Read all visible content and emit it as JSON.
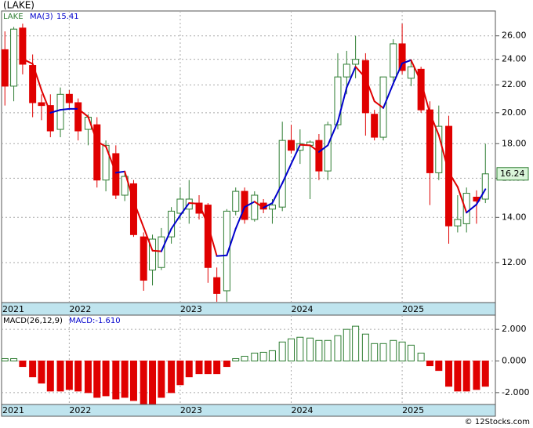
{
  "chart_data": [
    {
      "type": "candlestick",
      "title": "(LAKE)",
      "symbol": "LAKE",
      "log_scale": true,
      "grid": true,
      "up_color": "#2e7d32",
      "down_color": "#e00000",
      "x": [
        2021.42,
        2021.5,
        2021.58,
        2021.67,
        2021.75,
        2021.83,
        2021.92,
        2022.0,
        2022.08,
        2022.17,
        2022.25,
        2022.33,
        2022.42,
        2022.5,
        2022.58,
        2022.67,
        2022.75,
        2022.83,
        2022.92,
        2023.0,
        2023.08,
        2023.17,
        2023.25,
        2023.33,
        2023.42,
        2023.5,
        2023.58,
        2023.67,
        2023.75,
        2023.83,
        2023.92,
        2024.0,
        2024.08,
        2024.17,
        2024.25,
        2024.33,
        2024.42,
        2024.5,
        2024.58,
        2024.67,
        2024.75,
        2024.83,
        2024.92,
        2025.0,
        2025.08,
        2025.17,
        2025.25,
        2025.33,
        2025.42,
        2025.5,
        2025.58,
        2025.67,
        2025.75
      ],
      "open": [
        24.8,
        21.9,
        26.7,
        23.5,
        20.7,
        20.5,
        18.9,
        21.3,
        20.7,
        18.9,
        19.2,
        15.9,
        17.4,
        15.1,
        15.7,
        13.1,
        11.7,
        11.8,
        13.1,
        14.2,
        14.4,
        14.7,
        14.6,
        11.4,
        10.9,
        14.3,
        15.3,
        13.9,
        14.7,
        14.4,
        14.5,
        18.2,
        17.6,
        17.9,
        18.2,
        16.4,
        19.2,
        22.6,
        23.6,
        23.9,
        19.9,
        18.4,
        22.6,
        25.3,
        22.5,
        23.2,
        20.2,
        16.3,
        19.1,
        13.6,
        13.7,
        15.0,
        14.9
      ],
      "high": [
        26.4,
        26.8,
        27.1,
        24.4,
        21.3,
        21.3,
        21.8,
        21.6,
        21.0,
        19.9,
        19.7,
        18.2,
        17.9,
        16.3,
        15.9,
        13.3,
        13.2,
        13.5,
        14.5,
        15.5,
        15.9,
        15.1,
        14.7,
        11.8,
        14.4,
        15.5,
        15.5,
        15.3,
        14.9,
        14.9,
        19.4,
        19.2,
        18.9,
        18.2,
        18.6,
        19.4,
        24.5,
        24.7,
        26.0,
        24.5,
        20.2,
        22.6,
        25.7,
        27.1,
        24.0,
        23.4,
        20.8,
        20.5,
        19.8,
        15.1,
        15.5,
        15.35,
        18.0
      ],
      "low": [
        20.5,
        20.8,
        22.8,
        19.7,
        19.5,
        18.4,
        18.4,
        20.2,
        18.2,
        17.9,
        15.5,
        15.3,
        14.9,
        14.8,
        13.1,
        10.9,
        11.1,
        11.7,
        12.8,
        13.9,
        13.7,
        13.9,
        11.2,
        10.5,
        10.5,
        14.1,
        13.7,
        13.8,
        14.2,
        13.7,
        14.3,
        17.4,
        16.8,
        14.9,
        15.9,
        15.9,
        18.9,
        21.3,
        22.5,
        18.5,
        18.2,
        18.2,
        22.2,
        22.8,
        21.9,
        20.0,
        14.6,
        15.9,
        12.8,
        13.3,
        13.3,
        13.7,
        14.7
      ],
      "close": [
        21.9,
        26.6,
        23.6,
        20.7,
        20.5,
        18.8,
        21.3,
        20.7,
        18.8,
        19.7,
        15.9,
        17.9,
        15.1,
        16.1,
        13.2,
        11.3,
        13.0,
        13.1,
        14.3,
        14.9,
        14.9,
        14.2,
        11.8,
        10.8,
        14.3,
        15.3,
        13.9,
        15.1,
        14.4,
        14.6,
        18.2,
        17.6,
        18.0,
        18.1,
        16.4,
        19.2,
        22.6,
        23.6,
        24.0,
        20.0,
        18.4,
        22.6,
        25.3,
        23.1,
        23.4,
        20.2,
        16.3,
        19.1,
        13.6,
        13.9,
        15.2,
        14.8,
        16.24
      ],
      "ma": {
        "name": "MA(3)",
        "up_color": "#0000cc",
        "down_color": "#e00000",
        "values": [
          null,
          null,
          24.03,
          23.63,
          21.6,
          20.0,
          20.2,
          20.27,
          20.27,
          19.73,
          18.13,
          17.83,
          16.3,
          16.37,
          14.8,
          13.53,
          12.5,
          12.47,
          13.47,
          14.1,
          14.7,
          14.67,
          13.63,
          12.27,
          12.3,
          13.47,
          14.5,
          14.77,
          14.47,
          14.7,
          15.73,
          16.8,
          17.93,
          17.9,
          17.5,
          17.9,
          19.4,
          21.8,
          23.4,
          22.53,
          20.8,
          20.33,
          22.1,
          23.67,
          23.93,
          22.23,
          19.97,
          18.53,
          16.33,
          15.53,
          14.23,
          14.63,
          15.41
        ]
      },
      "xlim": [
        2021.39,
        2025.84
      ],
      "xticks": [
        2021,
        2022,
        2023,
        2024,
        2025
      ],
      "ylim": [
        10.47,
        28.3
      ],
      "yticks": [
        {
          "value": 12,
          "label": "12.00"
        },
        {
          "value": 14,
          "label": "14.00"
        },
        {
          "value": 16,
          "label": "16.00"
        },
        {
          "value": 18,
          "label": "18.00"
        },
        {
          "value": 20,
          "label": "20.00"
        },
        {
          "value": 22,
          "label": "22.00"
        },
        {
          "value": 24,
          "label": "24.00"
        },
        {
          "value": 26,
          "label": "26.00"
        }
      ]
    },
    {
      "type": "histogram-macd",
      "title": "MACD(26,12,9)",
      "macd_label": "MACD:-1.610",
      "up_color": "#2e7d32",
      "down_color": "#e00000",
      "values": [
        0.15,
        0.15,
        -0.35,
        -1.0,
        -1.4,
        -1.9,
        -1.9,
        -1.8,
        -1.9,
        -2.0,
        -2.3,
        -2.2,
        -2.4,
        -2.3,
        -2.5,
        -2.7,
        -2.7,
        -2.3,
        -2.0,
        -1.5,
        -1.0,
        -0.8,
        -0.8,
        -0.8,
        -0.35,
        0.15,
        0.3,
        0.5,
        0.55,
        0.65,
        1.2,
        1.4,
        1.5,
        1.45,
        1.3,
        1.3,
        1.6,
        2.0,
        2.2,
        1.7,
        1.1,
        1.1,
        1.3,
        1.2,
        1.0,
        0.5,
        -0.3,
        -0.6,
        -1.6,
        -1.9,
        -1.9,
        -1.8,
        -1.6
      ],
      "ylim": [
        -2.75,
        2.9
      ],
      "yticks": [
        {
          "value": 2,
          "label": "2.000"
        },
        {
          "value": 0,
          "label": "0.000"
        },
        {
          "value": -2,
          "label": "-2.000"
        }
      ]
    }
  ],
  "footer": "© 12Stocks.com"
}
